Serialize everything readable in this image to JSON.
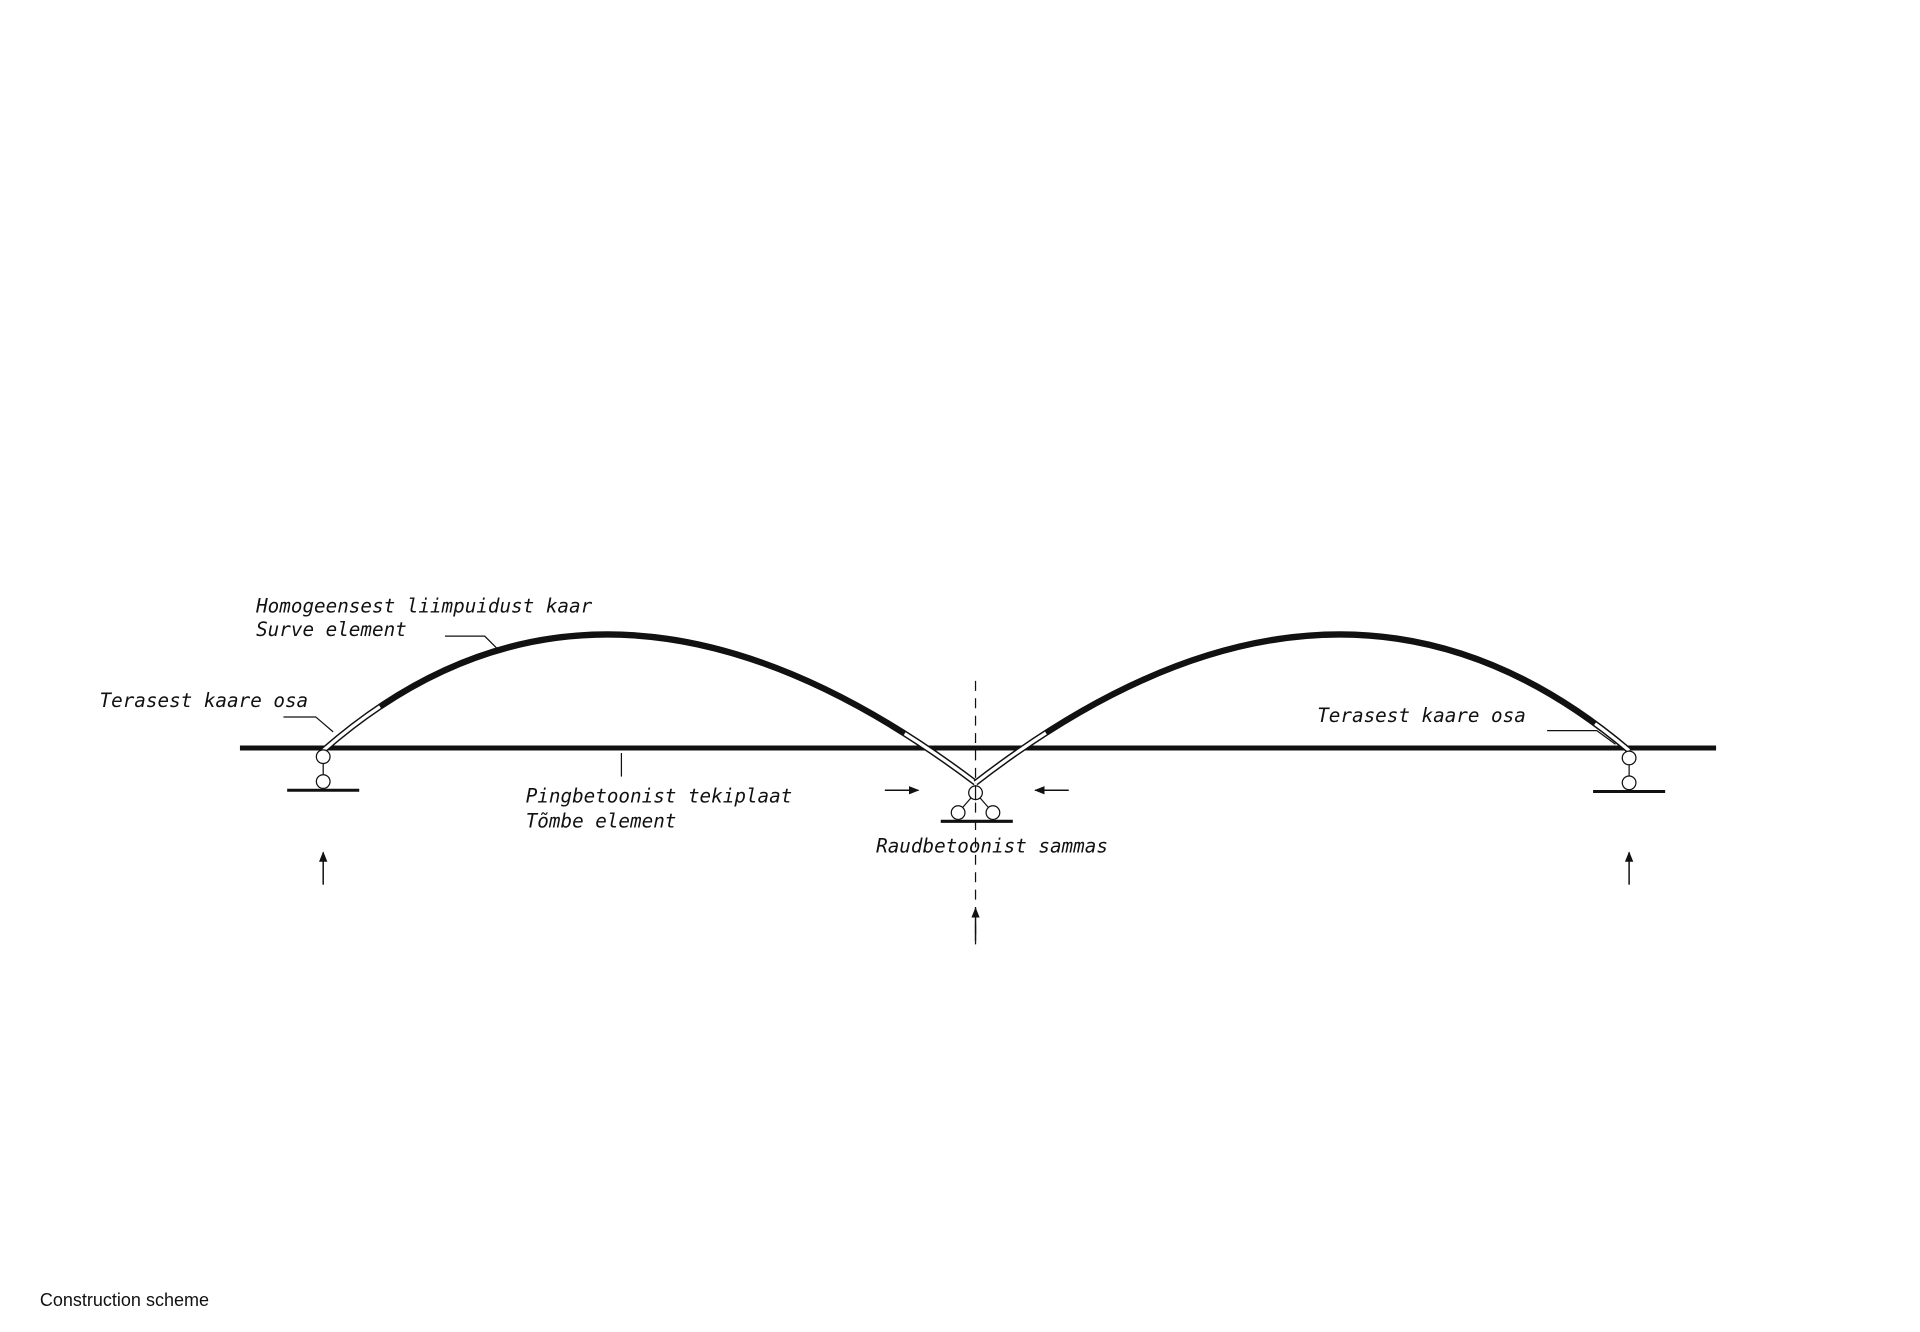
{
  "labels": {
    "arch_top": "Homogeensest liimpuidust kaar",
    "arch_bottom": "Surve element",
    "steel_left": "Terasest kaare osa",
    "steel_right": "Terasest kaare osa",
    "deck_top": "Pingbetoonist tekiplaat",
    "deck_bottom": "Tõmbe element",
    "column": "Raudbetoonist sammas"
  },
  "caption": "Construction scheme"
}
